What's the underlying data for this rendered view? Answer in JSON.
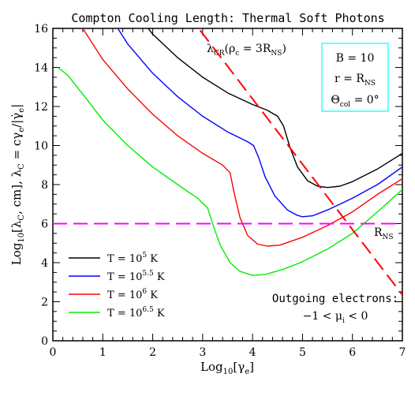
{
  "chart_data": {
    "type": "line",
    "title": "Compton Cooling Length: Thermal Soft Photons",
    "xlabel": "Log₁₀[γe]",
    "ylabel": "Log₁₀[λC, cm], λC = cγe/|γ̇e|",
    "xlim": [
      0,
      7
    ],
    "ylim": [
      0,
      16
    ],
    "x_ticks": [
      "0",
      "1",
      "2",
      "3",
      "4",
      "5",
      "6",
      "7"
    ],
    "y_ticks": [
      "0",
      "2",
      "4",
      "6",
      "8",
      "10",
      "12",
      "14",
      "16"
    ],
    "series": [
      {
        "name": "T = 10^5 K",
        "color": "#000000",
        "points": [
          [
            1.85,
            16.2
          ],
          [
            2.0,
            15.7
          ],
          [
            2.5,
            14.5
          ],
          [
            3.0,
            13.5
          ],
          [
            3.5,
            12.7
          ],
          [
            4.0,
            12.1
          ],
          [
            4.3,
            11.8
          ],
          [
            4.5,
            11.5
          ],
          [
            4.62,
            11.0
          ],
          [
            4.75,
            9.9
          ],
          [
            4.9,
            8.9
          ],
          [
            5.1,
            8.2
          ],
          [
            5.3,
            7.92
          ],
          [
            5.5,
            7.85
          ],
          [
            5.75,
            7.92
          ],
          [
            6.0,
            8.15
          ],
          [
            6.5,
            8.8
          ],
          [
            7.0,
            9.6
          ]
        ]
      },
      {
        "name": "T = 10^5.5 K",
        "color": "#0000ff",
        "points": [
          [
            1.25,
            16.2
          ],
          [
            1.5,
            15.2
          ],
          [
            2.0,
            13.7
          ],
          [
            2.5,
            12.5
          ],
          [
            3.0,
            11.5
          ],
          [
            3.5,
            10.7
          ],
          [
            3.9,
            10.2
          ],
          [
            4.02,
            10.0
          ],
          [
            4.12,
            9.4
          ],
          [
            4.25,
            8.4
          ],
          [
            4.45,
            7.4
          ],
          [
            4.7,
            6.7
          ],
          [
            4.9,
            6.42
          ],
          [
            5.0,
            6.35
          ],
          [
            5.2,
            6.4
          ],
          [
            5.5,
            6.7
          ],
          [
            6.0,
            7.3
          ],
          [
            6.5,
            8.0
          ],
          [
            7.0,
            8.9
          ]
        ]
      },
      {
        "name": "T = 10^6 K",
        "color": "#ff0000",
        "points": [
          [
            0.55,
            16.2
          ],
          [
            1.0,
            14.4
          ],
          [
            1.5,
            12.9
          ],
          [
            2.0,
            11.6
          ],
          [
            2.5,
            10.5
          ],
          [
            3.0,
            9.6
          ],
          [
            3.4,
            9.0
          ],
          [
            3.55,
            8.6
          ],
          [
            3.62,
            7.7
          ],
          [
            3.75,
            6.3
          ],
          [
            3.9,
            5.4
          ],
          [
            4.1,
            4.95
          ],
          [
            4.3,
            4.85
          ],
          [
            4.55,
            4.9
          ],
          [
            5.0,
            5.3
          ],
          [
            5.5,
            5.9
          ],
          [
            6.0,
            6.6
          ],
          [
            6.5,
            7.5
          ],
          [
            7.0,
            8.3
          ]
        ]
      },
      {
        "name": "T = 10^6.5 K",
        "color": "#00ee00",
        "points": [
          [
            0.1,
            14.0
          ],
          [
            0.3,
            13.6
          ],
          [
            0.7,
            12.3
          ],
          [
            1.0,
            11.3
          ],
          [
            1.5,
            10.0
          ],
          [
            2.0,
            8.9
          ],
          [
            2.5,
            8.0
          ],
          [
            2.9,
            7.3
          ],
          [
            3.1,
            6.8
          ],
          [
            3.2,
            6.0
          ],
          [
            3.35,
            4.9
          ],
          [
            3.55,
            4.0
          ],
          [
            3.75,
            3.55
          ],
          [
            4.0,
            3.35
          ],
          [
            4.25,
            3.4
          ],
          [
            4.6,
            3.65
          ],
          [
            5.0,
            4.05
          ],
          [
            5.5,
            4.7
          ],
          [
            6.0,
            5.5
          ],
          [
            6.5,
            6.6
          ],
          [
            7.0,
            7.75
          ]
        ]
      }
    ],
    "reference_lines": {
      "r_ns": {
        "y": 6.0,
        "label": "R",
        "label_sub": "NS",
        "color": "#ff00ff"
      },
      "lambda_cr": {
        "points": [
          [
            2.95,
            15.9
          ],
          [
            7.0,
            2.35
          ]
        ],
        "label_main": "λ",
        "label_sub": "CR",
        "label_paren": "(ρ",
        "label_paren_sub": "c",
        "label_eq": " = 3R",
        "label_eq_sub": "NS",
        "label_close": ")",
        "color": "#ff0000"
      }
    },
    "legend": {
      "position": "bottom-left",
      "entries": [
        {
          "label": "T = 10",
          "sup": "5",
          "suffix": " K",
          "color": "#000000"
        },
        {
          "label": "T = 10",
          "sup": "5.5",
          "suffix": " K",
          "color": "#0000ff"
        },
        {
          "label": "T = 10",
          "sup": "6",
          "suffix": " K",
          "color": "#ff0000"
        },
        {
          "label": "T = 10",
          "sup": "6.5",
          "suffix": " K",
          "color": "#00ee00"
        }
      ]
    },
    "info_box": {
      "border_color": "#00ffff",
      "line1": "B = 10",
      "line2": "r = R",
      "line2_sub": "NS",
      "line3": "Θ",
      "line3_sub": "col",
      "line3_rest": " = 0°"
    },
    "annotation": {
      "line1": "Outgoing electrons:",
      "line2_a": "−1 < μ",
      "line2_sub": "i",
      "line2_b": " < 0"
    },
    "grid": false
  }
}
